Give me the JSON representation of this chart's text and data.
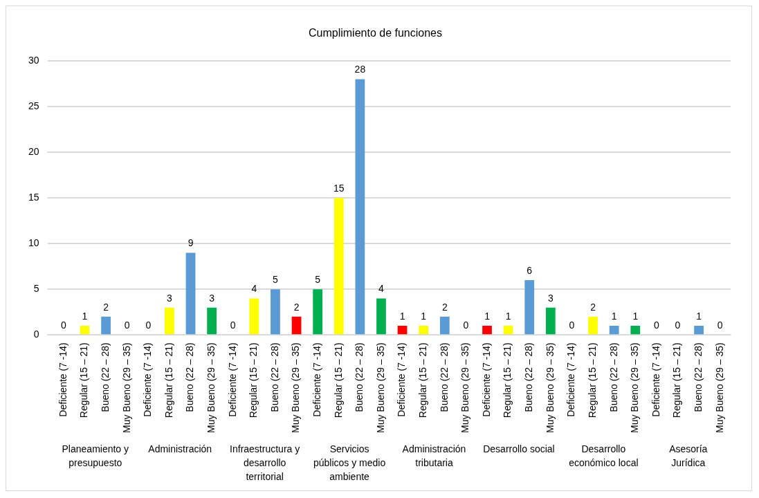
{
  "chart_data": {
    "type": "bar",
    "title": "Cumplimiento de funciones",
    "categories": [
      "Deficiente (7 -14)",
      "Regular (15 – 21)",
      "Bueno (22 – 28)",
      "Muy Bueno (29 – 35)",
      "Deficiente (7 -14)",
      "Regular (15 – 21)",
      "Bueno (22 – 28)",
      "Muy Bueno (29 – 35)",
      "Deficiente (7 -14)",
      "Regular (15 – 21)",
      "Bueno (22 – 28)",
      "Muy Bueno (29 – 35)",
      "Deficiente (7 -14)",
      "Regular (15 – 21)",
      "Bueno (22 – 28)",
      "Muy Bueno (29 – 35)",
      "Deficiente (7 -14)",
      "Regular (15 – 21)",
      "Bueno (22 – 28)",
      "Muy Bueno (29 – 35)",
      "Deficiente (7 -14)",
      "Regular (15 – 21)",
      "Bueno (22 – 28)",
      "Muy Bueno (29 – 35)",
      "Deficiente (7 -14)",
      "Regular (15 – 21)",
      "Bueno (22 – 28)",
      "Muy Bueno (29 – 35)",
      "Deficiente (7 -14)",
      "Regular (15 – 21)",
      "Bueno (22 – 28)",
      "Muy Bueno (29 – 35)"
    ],
    "values": [
      0,
      1,
      2,
      0,
      0,
      3,
      9,
      3,
      0,
      4,
      5,
      2,
      5,
      15,
      28,
      4,
      1,
      1,
      2,
      0,
      1,
      1,
      6,
      3,
      0,
      2,
      1,
      1,
      0,
      0,
      1,
      0
    ],
    "colors": [
      "#ff0000",
      "#ffff00",
      "#5b9bd5",
      "#00b050",
      "#ff0000",
      "#ffff00",
      "#5b9bd5",
      "#00b050",
      "#ff0000",
      "#ffff00",
      "#5b9bd5",
      "#ff0000",
      "#00b050",
      "#ffff00",
      "#5b9bd5",
      "#00b050",
      "#ff0000",
      "#ffff00",
      "#5b9bd5",
      "#00b050",
      "#ff0000",
      "#ffff00",
      "#5b9bd5",
      "#00b050",
      "#ff0000",
      "#ffff00",
      "#5b9bd5",
      "#00b050",
      "#ff0000",
      "#ffff00",
      "#5b9bd5",
      "#00b050"
    ],
    "annotations": [
      "Planeamiento y presupuesto",
      "Administración",
      "Infraestructura y desarrollo territorial",
      "Servicios públicos y medio ambiente",
      "Administración tributaria",
      "Desarrollo social",
      "Desarrollo económico local",
      "Asesoría Jurídica"
    ],
    "ylim": [
      0,
      30
    ],
    "yticks": [
      0,
      5,
      10,
      15,
      20,
      25,
      30
    ],
    "grid": "y",
    "data_labels": true,
    "legend": false
  }
}
